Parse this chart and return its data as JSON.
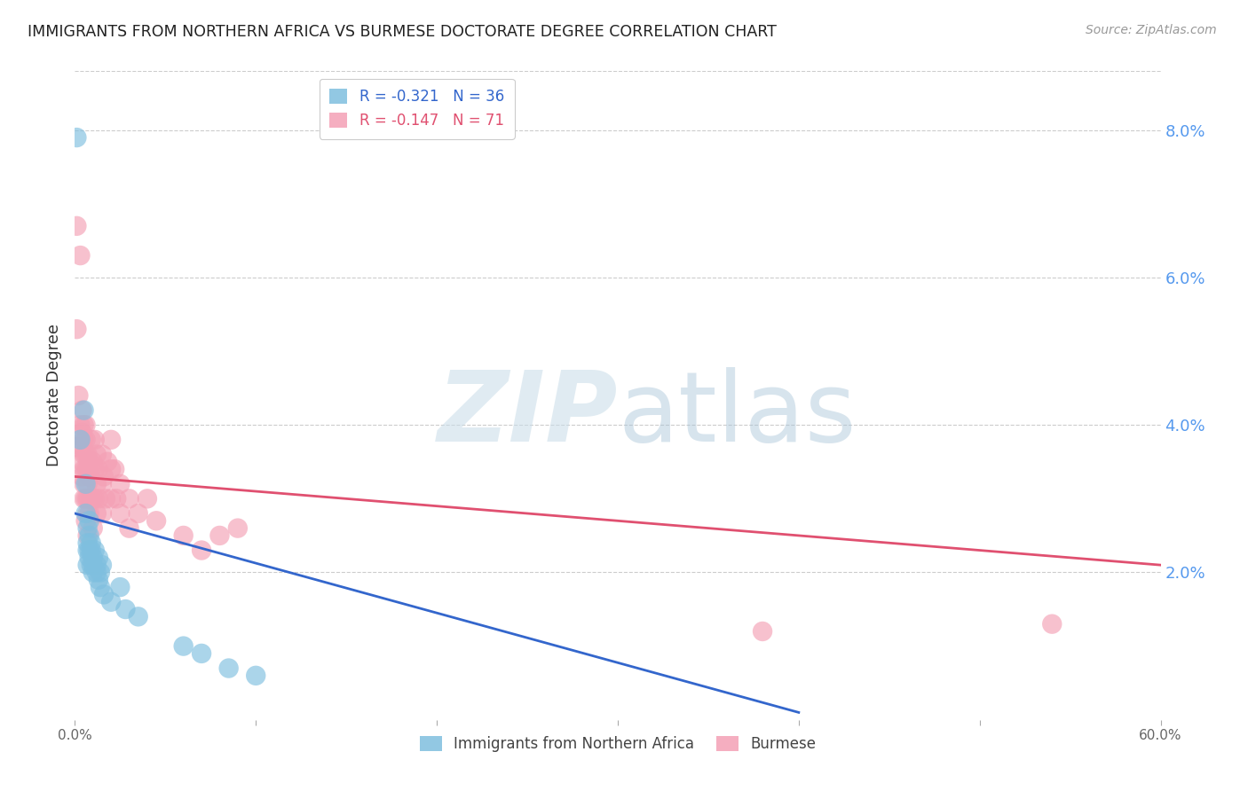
{
  "title": "IMMIGRANTS FROM NORTHERN AFRICA VS BURMESE DOCTORATE DEGREE CORRELATION CHART",
  "source": "Source: ZipAtlas.com",
  "ylabel": "Doctorate Degree",
  "xlim": [
    0.0,
    0.6
  ],
  "ylim": [
    0.0,
    0.088
  ],
  "ytick_right": [
    0.02,
    0.04,
    0.06,
    0.08
  ],
  "ytick_right_labels": [
    "2.0%",
    "4.0%",
    "6.0%",
    "8.0%"
  ],
  "legend1_label": "R = -0.321   N = 36",
  "legend2_label": "R = -0.147   N = 71",
  "series1_name": "Immigrants from Northern Africa",
  "series2_name": "Burmese",
  "color_blue": "#7fbfdf",
  "color_pink": "#f4a0b5",
  "color_blue_line": "#3366cc",
  "color_pink_line": "#e05070",
  "blue_dots": [
    [
      0.001,
      0.079
    ],
    [
      0.003,
      0.038
    ],
    [
      0.005,
      0.042
    ],
    [
      0.006,
      0.032
    ],
    [
      0.006,
      0.028
    ],
    [
      0.007,
      0.026
    ],
    [
      0.007,
      0.024
    ],
    [
      0.007,
      0.023
    ],
    [
      0.007,
      0.021
    ],
    [
      0.008,
      0.027
    ],
    [
      0.008,
      0.025
    ],
    [
      0.008,
      0.023
    ],
    [
      0.008,
      0.022
    ],
    [
      0.009,
      0.024
    ],
    [
      0.009,
      0.023
    ],
    [
      0.009,
      0.021
    ],
    [
      0.01,
      0.022
    ],
    [
      0.01,
      0.021
    ],
    [
      0.01,
      0.02
    ],
    [
      0.011,
      0.023
    ],
    [
      0.012,
      0.021
    ],
    [
      0.012,
      0.02
    ],
    [
      0.013,
      0.022
    ],
    [
      0.013,
      0.019
    ],
    [
      0.014,
      0.02
    ],
    [
      0.014,
      0.018
    ],
    [
      0.015,
      0.021
    ],
    [
      0.016,
      0.017
    ],
    [
      0.02,
      0.016
    ],
    [
      0.025,
      0.018
    ],
    [
      0.028,
      0.015
    ],
    [
      0.035,
      0.014
    ],
    [
      0.06,
      0.01
    ],
    [
      0.07,
      0.009
    ],
    [
      0.085,
      0.007
    ],
    [
      0.1,
      0.006
    ]
  ],
  "pink_dots": [
    [
      0.001,
      0.053
    ],
    [
      0.001,
      0.067
    ],
    [
      0.001,
      0.037
    ],
    [
      0.002,
      0.044
    ],
    [
      0.003,
      0.063
    ],
    [
      0.003,
      0.04
    ],
    [
      0.004,
      0.042
    ],
    [
      0.004,
      0.039
    ],
    [
      0.004,
      0.037
    ],
    [
      0.004,
      0.035
    ],
    [
      0.004,
      0.033
    ],
    [
      0.005,
      0.04
    ],
    [
      0.005,
      0.038
    ],
    [
      0.005,
      0.036
    ],
    [
      0.005,
      0.034
    ],
    [
      0.005,
      0.032
    ],
    [
      0.005,
      0.03
    ],
    [
      0.006,
      0.04
    ],
    [
      0.006,
      0.038
    ],
    [
      0.006,
      0.036
    ],
    [
      0.006,
      0.034
    ],
    [
      0.006,
      0.03
    ],
    [
      0.006,
      0.027
    ],
    [
      0.007,
      0.036
    ],
    [
      0.007,
      0.034
    ],
    [
      0.007,
      0.032
    ],
    [
      0.007,
      0.03
    ],
    [
      0.007,
      0.028
    ],
    [
      0.007,
      0.025
    ],
    [
      0.008,
      0.035
    ],
    [
      0.008,
      0.033
    ],
    [
      0.008,
      0.03
    ],
    [
      0.008,
      0.028
    ],
    [
      0.009,
      0.038
    ],
    [
      0.009,
      0.034
    ],
    [
      0.009,
      0.03
    ],
    [
      0.01,
      0.035
    ],
    [
      0.01,
      0.03
    ],
    [
      0.01,
      0.026
    ],
    [
      0.011,
      0.038
    ],
    [
      0.011,
      0.034
    ],
    [
      0.011,
      0.03
    ],
    [
      0.012,
      0.036
    ],
    [
      0.012,
      0.032
    ],
    [
      0.012,
      0.028
    ],
    [
      0.013,
      0.034
    ],
    [
      0.013,
      0.03
    ],
    [
      0.015,
      0.036
    ],
    [
      0.015,
      0.032
    ],
    [
      0.015,
      0.028
    ],
    [
      0.016,
      0.033
    ],
    [
      0.017,
      0.03
    ],
    [
      0.018,
      0.035
    ],
    [
      0.02,
      0.038
    ],
    [
      0.02,
      0.034
    ],
    [
      0.02,
      0.03
    ],
    [
      0.022,
      0.034
    ],
    [
      0.023,
      0.03
    ],
    [
      0.025,
      0.032
    ],
    [
      0.025,
      0.028
    ],
    [
      0.03,
      0.03
    ],
    [
      0.03,
      0.026
    ],
    [
      0.035,
      0.028
    ],
    [
      0.04,
      0.03
    ],
    [
      0.045,
      0.027
    ],
    [
      0.06,
      0.025
    ],
    [
      0.07,
      0.023
    ],
    [
      0.08,
      0.025
    ],
    [
      0.09,
      0.026
    ],
    [
      0.38,
      0.012
    ],
    [
      0.54,
      0.013
    ]
  ],
  "blue_line_x": [
    0.0,
    0.4
  ],
  "blue_line_y": [
    0.028,
    0.001
  ],
  "pink_line_x": [
    0.0,
    0.6
  ],
  "pink_line_y": [
    0.033,
    0.021
  ]
}
